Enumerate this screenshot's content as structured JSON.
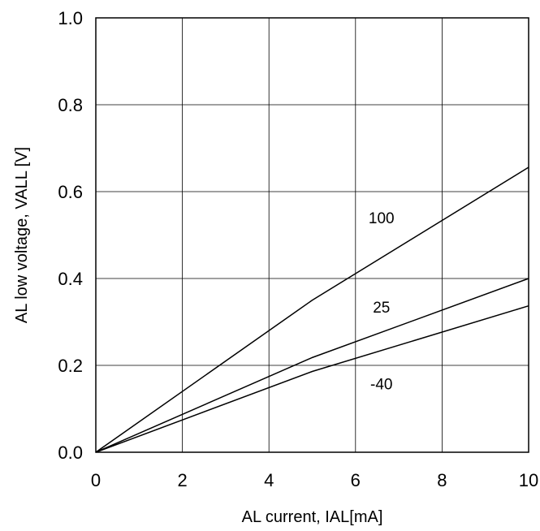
{
  "chart_data": {
    "type": "line",
    "title": "",
    "xlabel": "AL current, IAL[mA]",
    "ylabel": "AL low voltage, VALL [V]",
    "xlim": [
      0,
      10
    ],
    "ylim": [
      0,
      1.0
    ],
    "x_ticks": [
      0,
      2,
      4,
      6,
      8,
      10
    ],
    "x_tick_labels": [
      "0",
      "2",
      "4",
      "6",
      "8",
      "10"
    ],
    "y_ticks": [
      0,
      0.2,
      0.4,
      0.6,
      0.8,
      1.0
    ],
    "y_tick_labels": [
      "0.0",
      "0.2",
      "0.4",
      "0.6",
      "0.8",
      "1.0"
    ],
    "grid": true,
    "legend": "none",
    "series": [
      {
        "name": "100",
        "x": [
          0,
          5,
          10
        ],
        "y": [
          0,
          0.35,
          0.656
        ],
        "label_at": [
          6.6,
          0.54
        ]
      },
      {
        "name": "25",
        "x": [
          0,
          5,
          10
        ],
        "y": [
          0,
          0.218,
          0.4
        ],
        "label_at": [
          6.6,
          0.335
        ]
      },
      {
        "name": "-40",
        "x": [
          0,
          5,
          10
        ],
        "y": [
          0,
          0.186,
          0.337
        ],
        "label_at": [
          6.6,
          0.158
        ]
      }
    ],
    "line_color": "#000000",
    "grid_color": "#000000"
  }
}
